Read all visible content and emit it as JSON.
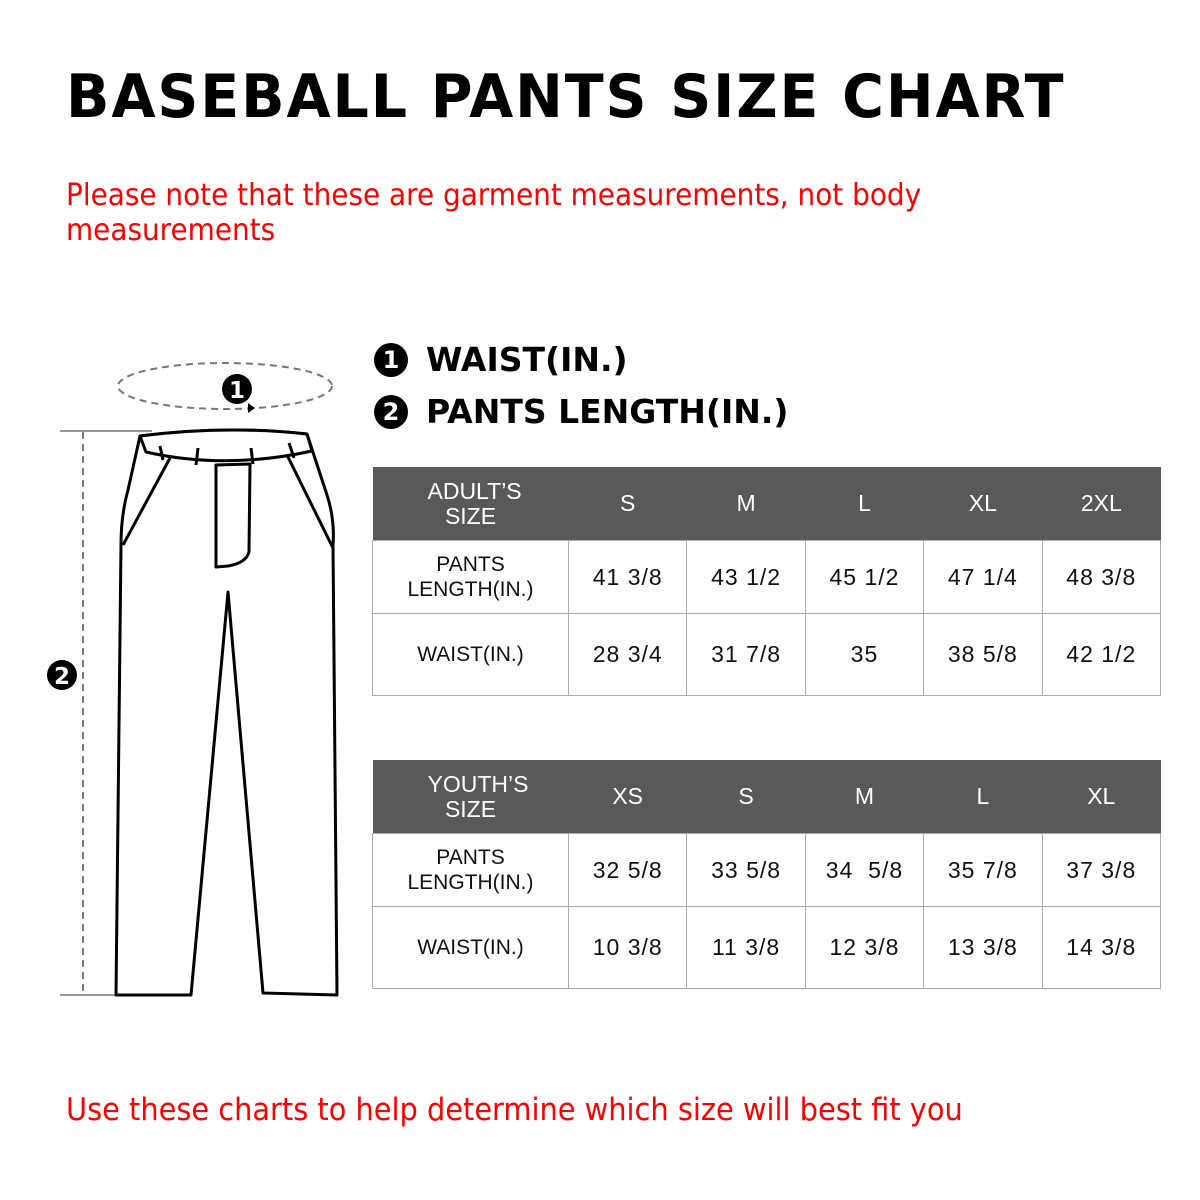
{
  "title": "BASEBALL PANTS SIZE CHART",
  "note": "Please note that these are garment measurements, not body measurements",
  "legend": [
    {
      "number": "1",
      "label": "WAIST(IN.)"
    },
    {
      "number": "2",
      "label": "PANTS LENGTH(IN.)"
    }
  ],
  "diagram": {
    "marker_waist": "1",
    "marker_length": "2"
  },
  "adult_table": {
    "header": "ADULT’S SIZE",
    "sizes": [
      "S",
      "M",
      "L",
      "XL",
      "2XL"
    ],
    "rows": [
      {
        "label": "PANTS LENGTH(IN.)",
        "values": [
          "41 3/8",
          "43 1/2",
          "45 1/2",
          "47 1/4",
          "48 3/8"
        ]
      },
      {
        "label": "WAIST(IN.)",
        "values": [
          "28 3/4",
          "31 7/8",
          "35",
          "38 5/8",
          "42 1/2"
        ]
      }
    ]
  },
  "youth_table": {
    "header": "YOUTH’S SIZE",
    "sizes": [
      "XS",
      "S",
      "M",
      "L",
      "XL"
    ],
    "rows": [
      {
        "label": "PANTS LENGTH(IN.)",
        "values": [
          "32 5/8",
          "33 5/8",
          "34  5/8",
          "35 7/8",
          "37 3/8"
        ]
      },
      {
        "label": "WAIST(IN.)",
        "values": [
          "10 3/8",
          "11 3/8",
          "12 3/8",
          "13 3/8",
          "14 3/8"
        ]
      }
    ]
  },
  "footer": "Use these charts to help determine which size will best fit you",
  "colors": {
    "note_red": "#ff0000",
    "header_gray": "#595959"
  }
}
